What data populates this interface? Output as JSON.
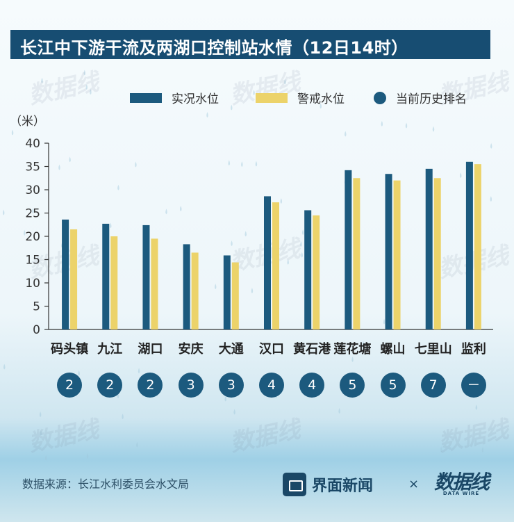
{
  "title": "长江中下游干流及两湖口控制站水情（12日14时）",
  "unit_label": "（米）",
  "legend": {
    "actual": "实况水位",
    "warning": "警戒水位",
    "rank": "当前历史排名"
  },
  "colors": {
    "actual": "#1c5a7e",
    "warning": "#ecd36a",
    "title_bg": "#174d72"
  },
  "chart_data": {
    "type": "bar",
    "ylabel": "（米）",
    "ylim": [
      0,
      40
    ],
    "yticks": [
      0,
      5,
      10,
      15,
      20,
      25,
      30,
      35,
      40
    ],
    "categories": [
      "码头镇",
      "九江",
      "湖口",
      "安庆",
      "大通",
      "汉口",
      "黄石港",
      "莲花塘",
      "螺山",
      "七里山",
      "监利"
    ],
    "series": [
      {
        "name": "实况水位",
        "values": [
          23.6,
          22.7,
          22.4,
          18.3,
          15.9,
          28.6,
          25.6,
          34.2,
          33.4,
          34.5,
          36.0
        ]
      },
      {
        "name": "警戒水位",
        "values": [
          21.5,
          20.0,
          19.5,
          16.5,
          14.4,
          27.3,
          24.5,
          32.5,
          32.0,
          32.5,
          35.5
        ]
      }
    ],
    "rank": [
      "2",
      "2",
      "2",
      "3",
      "3",
      "4",
      "4",
      "5",
      "5",
      "7",
      "－"
    ],
    "grid": false,
    "legend_position": "top"
  },
  "footer": {
    "source": "数据来源：长江水利委员会水文局",
    "brand": "界面新闻",
    "times": "×",
    "datawire": "数据线",
    "datawire_en": "DATA WIRE"
  }
}
